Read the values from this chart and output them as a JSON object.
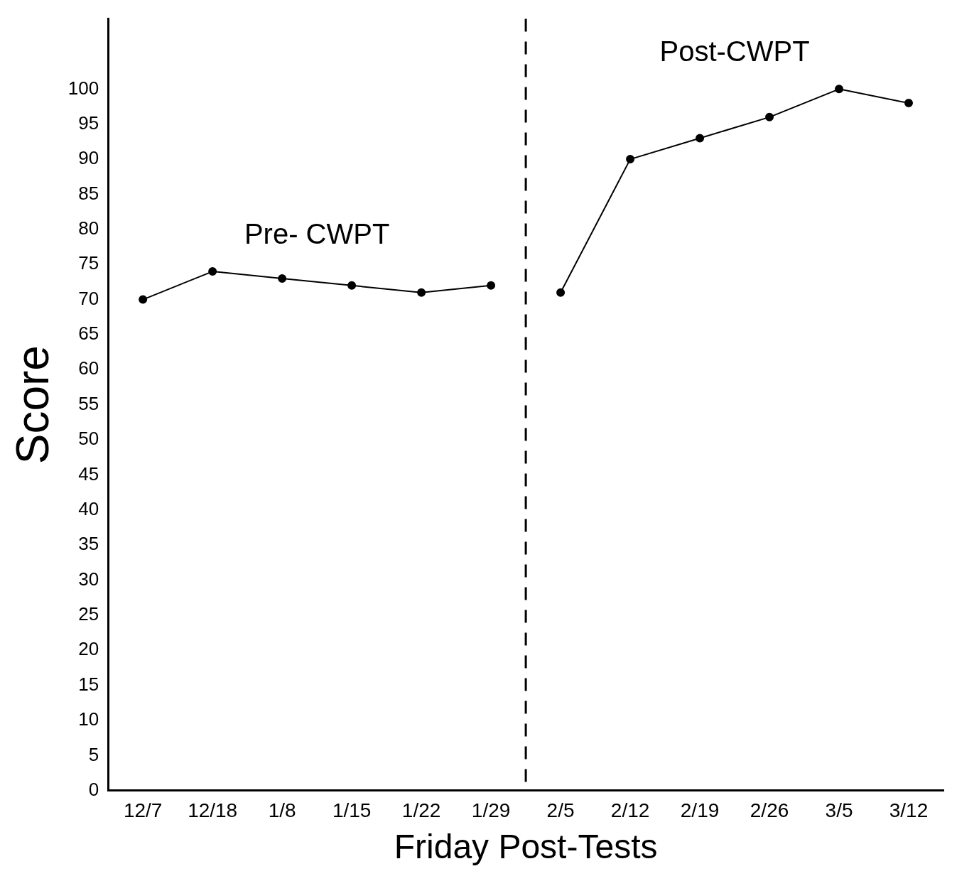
{
  "chart_data": {
    "type": "line",
    "xlabel": "Friday Post-Tests",
    "ylabel": "Score",
    "categories": [
      "12/7",
      "12/18",
      "1/8",
      "1/15",
      "1/22",
      "1/29",
      "2/5",
      "2/12",
      "2/19",
      "2/26",
      "3/5",
      "3/12"
    ],
    "series": [
      {
        "name": "Pre- CWPT",
        "color": "#000000",
        "values": [
          70,
          74,
          73,
          72,
          71,
          72,
          null,
          null,
          null,
          null,
          null,
          null
        ]
      },
      {
        "name": "Post-CWPT",
        "color": "#000000",
        "values": [
          null,
          null,
          null,
          null,
          null,
          null,
          71,
          90,
          93,
          96,
          100,
          98
        ]
      }
    ],
    "ylim": [
      0,
      110
    ],
    "yticks": [
      0,
      5,
      10,
      15,
      20,
      25,
      30,
      35,
      40,
      45,
      50,
      55,
      60,
      65,
      70,
      75,
      80,
      85,
      90,
      95,
      100
    ],
    "grid": false,
    "legend": false,
    "marker": "circle",
    "line_style": "solid"
  }
}
